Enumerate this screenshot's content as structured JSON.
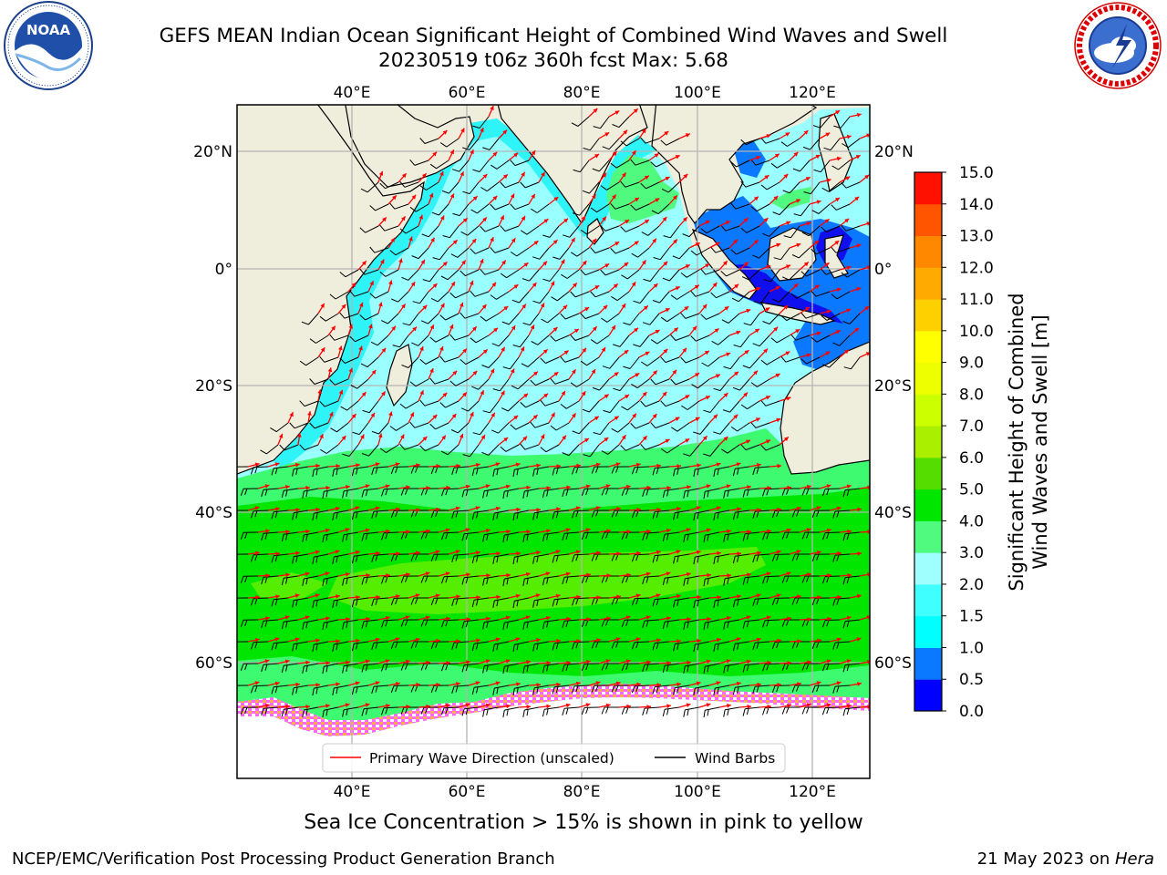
{
  "title": {
    "line1": "GEFS MEAN Indian Ocean Significant Height of Combined Wind Waves and Swell",
    "line2": "20230519 t06z 360h fcst   Max: 5.68"
  },
  "logos": {
    "left": {
      "icon": "noaa-logo",
      "text": "NOAA",
      "ring": "NATIONAL OCEANIC AND ATMOSPHERIC ADMINISTRATION · U.S. DEPARTMENT OF COMMERCE"
    },
    "right": {
      "icon": "nws-logo",
      "ring": "NATIONAL WEATHER SERVICE"
    }
  },
  "map": {
    "lon_labels": [
      "40°E",
      "60°E",
      "80°E",
      "100°E",
      "120°E"
    ],
    "lat_labels": [
      "20°N",
      "0°",
      "20°S",
      "40°S",
      "60°S"
    ],
    "colors": {
      "land": "#efeddc",
      "ocean_low": "#22f0f5",
      "ocean_mid": "#99ffff",
      "ocean_high": "#3eff79",
      "southern": "#00e600",
      "ice": "#ff55ff",
      "arrow": "#ff0000",
      "barb": "#000000"
    }
  },
  "legend": {
    "wave_label": "Primary Wave Direction (unscaled)",
    "barb_label": "Wind Barbs"
  },
  "colorbar": {
    "title_line1": "Significant Height of Combined",
    "title_line2": "Wind Waves and Swell [m]",
    "levels": [
      "0.0",
      "0.5",
      "1.0",
      "1.5",
      "2.0",
      "3.0",
      "4.0",
      "5.0",
      "6.0",
      "7.0",
      "8.0",
      "9.0",
      "10.0",
      "11.0",
      "12.0",
      "13.0",
      "14.0",
      "15.0"
    ],
    "colors": [
      "#0000ff",
      "#0a78ff",
      "#00ffff",
      "#40ffff",
      "#9fffff",
      "#50fa7f",
      "#00e600",
      "#55dd00",
      "#aaee00",
      "#ccff00",
      "#eeff00",
      "#ffff00",
      "#ffd000",
      "#ffaa00",
      "#ff8800",
      "#ff5500",
      "#ff1100"
    ]
  },
  "ice_note": "Sea Ice Concentration > 15% is shown in pink to yellow",
  "footer": {
    "left": "NCEP/EMC/Verification Post Processing Product Generation Branch",
    "right_prefix": "21 May 2023 on ",
    "right_host": "Hera"
  }
}
